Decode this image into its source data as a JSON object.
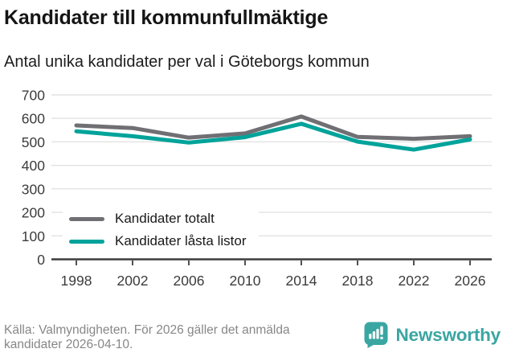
{
  "header": {
    "title": "Kandidater till kommunfullmäktige",
    "subtitle": "Antal unika kandidater per val i Göteborgs kommun"
  },
  "chart_data": {
    "type": "line",
    "x": [
      "1998",
      "2002",
      "2006",
      "2010",
      "2014",
      "2018",
      "2022",
      "2026"
    ],
    "series": [
      {
        "name": "Kandidater totalt",
        "color": "#6f6f74",
        "values": [
          570,
          559,
          518,
          536,
          608,
          521,
          513,
          524
        ]
      },
      {
        "name": "Kandidater låsta listor",
        "color": "#00a39a",
        "values": [
          545,
          524,
          497,
          520,
          577,
          501,
          467,
          510
        ]
      }
    ],
    "title": "Kandidater till kommunfullmäktige",
    "subtitle": "Antal unika kandidater per val i Göteborgs kommun",
    "xlabel": "",
    "ylabel": "",
    "ylim": [
      0,
      700
    ],
    "yticks": [
      0,
      100,
      200,
      300,
      400,
      500,
      600,
      700
    ],
    "grid": "horizontal-only",
    "legend_position": "inside-bottom-left"
  },
  "footer": {
    "source": "Källa: Valmyndigheten. För 2026 gäller det anmälda kandidater 2026-04-10.",
    "brand": "Newsworthy"
  },
  "colors": {
    "series_total_gray": "#6f6f74",
    "series_locked_teal": "#00a39a",
    "brand_teal": "#3aa6a2",
    "axis_dark": "#3c3c3c",
    "gridline_gray": "#e2e2e2",
    "source_text_gray": "#878787"
  }
}
